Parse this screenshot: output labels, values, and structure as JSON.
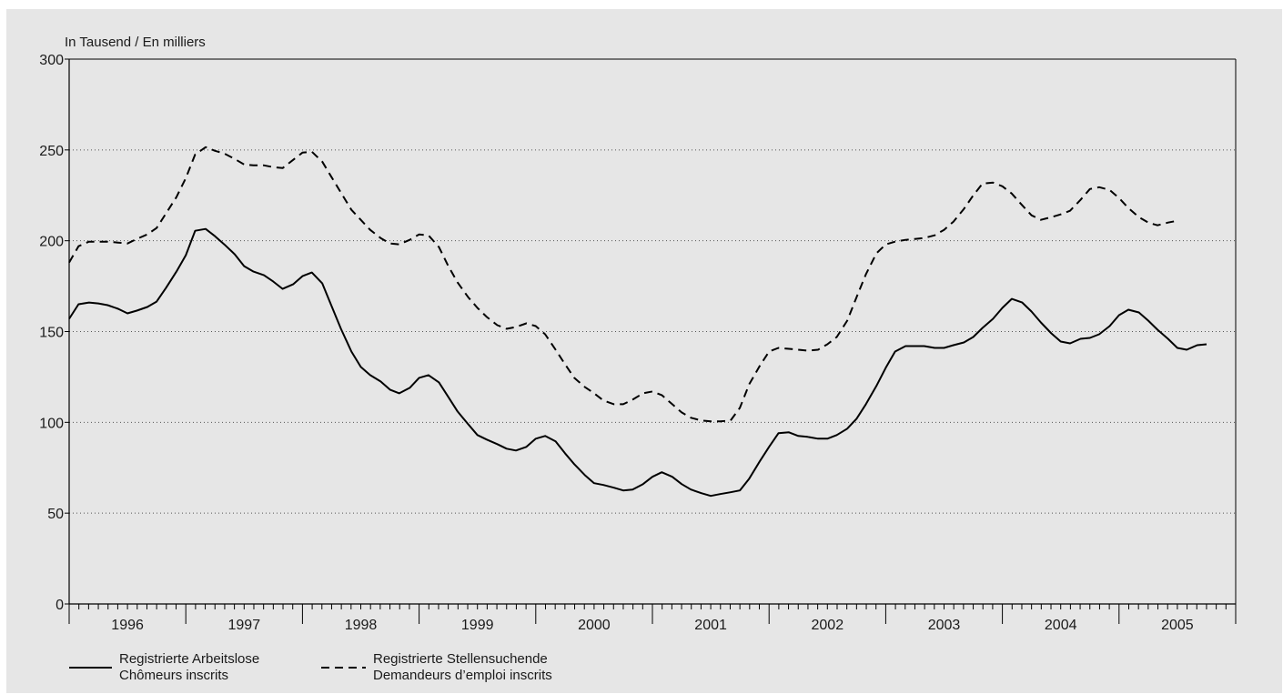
{
  "chart_data": {
    "type": "line",
    "unit_label": "In Tausend / En milliers",
    "ylim": [
      0,
      300
    ],
    "yticks": [
      0,
      50,
      100,
      150,
      200,
      250,
      300
    ],
    "xlim": [
      1996,
      2006
    ],
    "year_labels": [
      "1996",
      "1997",
      "1998",
      "1999",
      "2000",
      "2001",
      "2002",
      "2003",
      "2004",
      "2005"
    ],
    "grid": "horizontal dotted",
    "legend_position": "bottom-left",
    "colors": {
      "line": "#000000",
      "background": "#e6e6e6",
      "grid": "#555555"
    },
    "series": [
      {
        "name": "Registrierte Arbeitslose",
        "name_fr": "Chômeurs inscrits",
        "style": "solid",
        "points": [
          [
            1996.0,
            157
          ],
          [
            1996.08,
            165
          ],
          [
            1996.17,
            166
          ],
          [
            1996.25,
            165.5
          ],
          [
            1996.33,
            164.5
          ],
          [
            1996.42,
            162.5
          ],
          [
            1996.5,
            160
          ],
          [
            1996.58,
            161.5
          ],
          [
            1996.67,
            163.5
          ],
          [
            1996.75,
            166.5
          ],
          [
            1996.83,
            174
          ],
          [
            1996.92,
            183
          ],
          [
            1997.0,
            192
          ],
          [
            1997.08,
            205.5
          ],
          [
            1997.17,
            206.5
          ],
          [
            1997.25,
            202.5
          ],
          [
            1997.33,
            198
          ],
          [
            1997.42,
            192.5
          ],
          [
            1997.5,
            186
          ],
          [
            1997.58,
            183
          ],
          [
            1997.67,
            181
          ],
          [
            1997.75,
            177.5
          ],
          [
            1997.83,
            173.5
          ],
          [
            1997.92,
            176
          ],
          [
            1998.0,
            180.5
          ],
          [
            1998.08,
            182.5
          ],
          [
            1998.17,
            176.5
          ],
          [
            1998.25,
            164
          ],
          [
            1998.33,
            151.5
          ],
          [
            1998.42,
            139
          ],
          [
            1998.5,
            130.5
          ],
          [
            1998.58,
            126
          ],
          [
            1998.67,
            122.5
          ],
          [
            1998.75,
            118
          ],
          [
            1998.83,
            116
          ],
          [
            1998.92,
            119
          ],
          [
            1999.0,
            124.5
          ],
          [
            1999.08,
            126
          ],
          [
            1999.17,
            122
          ],
          [
            1999.25,
            114
          ],
          [
            1999.33,
            106
          ],
          [
            1999.42,
            99
          ],
          [
            1999.5,
            93
          ],
          [
            1999.58,
            90.5
          ],
          [
            1999.67,
            88
          ],
          [
            1999.75,
            85.5
          ],
          [
            1999.83,
            84.5
          ],
          [
            1999.92,
            86.5
          ],
          [
            2000.0,
            91
          ],
          [
            2000.08,
            92.5
          ],
          [
            2000.17,
            89.5
          ],
          [
            2000.25,
            83
          ],
          [
            2000.33,
            77
          ],
          [
            2000.42,
            71
          ],
          [
            2000.5,
            66.5
          ],
          [
            2000.58,
            65.5
          ],
          [
            2000.67,
            64
          ],
          [
            2000.75,
            62.5
          ],
          [
            2000.83,
            63
          ],
          [
            2000.92,
            66
          ],
          [
            2001.0,
            70
          ],
          [
            2001.08,
            72.5
          ],
          [
            2001.17,
            70
          ],
          [
            2001.25,
            66
          ],
          [
            2001.33,
            63
          ],
          [
            2001.42,
            61
          ],
          [
            2001.5,
            59.5
          ],
          [
            2001.58,
            60.5
          ],
          [
            2001.67,
            61.5
          ],
          [
            2001.75,
            62.5
          ],
          [
            2001.83,
            69
          ],
          [
            2001.92,
            78.5
          ],
          [
            2002.0,
            86.5
          ],
          [
            2002.08,
            94
          ],
          [
            2002.17,
            94.5
          ],
          [
            2002.25,
            92.5
          ],
          [
            2002.33,
            92
          ],
          [
            2002.42,
            91
          ],
          [
            2002.5,
            91
          ],
          [
            2002.58,
            93
          ],
          [
            2002.67,
            96.5
          ],
          [
            2002.75,
            102
          ],
          [
            2002.83,
            110
          ],
          [
            2002.92,
            120
          ],
          [
            2003.0,
            130
          ],
          [
            2003.08,
            139
          ],
          [
            2003.17,
            142
          ],
          [
            2003.25,
            142
          ],
          [
            2003.33,
            142
          ],
          [
            2003.42,
            141
          ],
          [
            2003.5,
            141
          ],
          [
            2003.58,
            142.5
          ],
          [
            2003.67,
            144
          ],
          [
            2003.75,
            147
          ],
          [
            2003.83,
            152
          ],
          [
            2003.92,
            157
          ],
          [
            2004.0,
            163
          ],
          [
            2004.08,
            168
          ],
          [
            2004.17,
            166
          ],
          [
            2004.25,
            161
          ],
          [
            2004.33,
            155
          ],
          [
            2004.42,
            149
          ],
          [
            2004.5,
            144.5
          ],
          [
            2004.58,
            143.5
          ],
          [
            2004.67,
            146
          ],
          [
            2004.75,
            146.5
          ],
          [
            2004.83,
            148.5
          ],
          [
            2004.92,
            153
          ],
          [
            2005.0,
            159
          ],
          [
            2005.08,
            162
          ],
          [
            2005.17,
            160.5
          ],
          [
            2005.25,
            156
          ],
          [
            2005.33,
            151
          ],
          [
            2005.42,
            146
          ],
          [
            2005.5,
            141
          ],
          [
            2005.58,
            140
          ],
          [
            2005.67,
            142.5
          ],
          [
            2005.75,
            143
          ]
        ]
      },
      {
        "name": "Registrierte Stellensuchende",
        "name_fr": "Demandeurs d’emploi inscrits",
        "style": "dashed",
        "points": [
          [
            1996.0,
            188
          ],
          [
            1996.08,
            197
          ],
          [
            1996.17,
            199.5
          ],
          [
            1996.25,
            199.5
          ],
          [
            1996.33,
            199.5
          ],
          [
            1996.42,
            199
          ],
          [
            1996.5,
            198.5
          ],
          [
            1996.58,
            201
          ],
          [
            1996.67,
            203.5
          ],
          [
            1996.75,
            207
          ],
          [
            1996.83,
            215
          ],
          [
            1996.92,
            224
          ],
          [
            1997.0,
            234.5
          ],
          [
            1997.08,
            247.5
          ],
          [
            1997.17,
            251.5
          ],
          [
            1997.25,
            249.5
          ],
          [
            1997.33,
            248
          ],
          [
            1997.42,
            245
          ],
          [
            1997.5,
            242
          ],
          [
            1997.58,
            241.5
          ],
          [
            1997.67,
            241.5
          ],
          [
            1997.75,
            240.5
          ],
          [
            1997.83,
            240
          ],
          [
            1997.92,
            244.5
          ],
          [
            1998.0,
            248.5
          ],
          [
            1998.08,
            249
          ],
          [
            1998.17,
            243.5
          ],
          [
            1998.25,
            235
          ],
          [
            1998.33,
            226.5
          ],
          [
            1998.42,
            217
          ],
          [
            1998.5,
            211.5
          ],
          [
            1998.58,
            206
          ],
          [
            1998.67,
            201.5
          ],
          [
            1998.75,
            198.5
          ],
          [
            1998.83,
            198
          ],
          [
            1998.92,
            200.5
          ],
          [
            1999.0,
            203.5
          ],
          [
            1999.08,
            203
          ],
          [
            1999.17,
            196.5
          ],
          [
            1999.25,
            186
          ],
          [
            1999.33,
            177
          ],
          [
            1999.42,
            169
          ],
          [
            1999.5,
            163
          ],
          [
            1999.58,
            158
          ],
          [
            1999.67,
            153.5
          ],
          [
            1999.75,
            151.5
          ],
          [
            1999.83,
            152.5
          ],
          [
            1999.92,
            154.5
          ],
          [
            2000.0,
            153
          ],
          [
            2000.08,
            148.5
          ],
          [
            2000.17,
            140
          ],
          [
            2000.25,
            132
          ],
          [
            2000.33,
            124.5
          ],
          [
            2000.42,
            119.5
          ],
          [
            2000.5,
            116
          ],
          [
            2000.58,
            112
          ],
          [
            2000.67,
            110
          ],
          [
            2000.75,
            110
          ],
          [
            2000.83,
            112.5
          ],
          [
            2000.92,
            116
          ],
          [
            2001.0,
            117
          ],
          [
            2001.08,
            115
          ],
          [
            2001.17,
            110
          ],
          [
            2001.25,
            105.5
          ],
          [
            2001.33,
            102.5
          ],
          [
            2001.42,
            101
          ],
          [
            2001.5,
            100.5
          ],
          [
            2001.58,
            100.5
          ],
          [
            2001.67,
            101
          ],
          [
            2001.75,
            108
          ],
          [
            2001.83,
            121
          ],
          [
            2001.92,
            131
          ],
          [
            2002.0,
            139
          ],
          [
            2002.08,
            141
          ],
          [
            2002.17,
            140.5
          ],
          [
            2002.25,
            140
          ],
          [
            2002.33,
            139.5
          ],
          [
            2002.42,
            140
          ],
          [
            2002.5,
            143
          ],
          [
            2002.58,
            147
          ],
          [
            2002.67,
            156
          ],
          [
            2002.75,
            169
          ],
          [
            2002.83,
            181.5
          ],
          [
            2002.92,
            193
          ],
          [
            2003.0,
            198
          ],
          [
            2003.08,
            199.5
          ],
          [
            2003.17,
            200.5
          ],
          [
            2003.25,
            201
          ],
          [
            2003.33,
            201.5
          ],
          [
            2003.42,
            203
          ],
          [
            2003.5,
            206
          ],
          [
            2003.58,
            210.5
          ],
          [
            2003.67,
            217.5
          ],
          [
            2003.75,
            225
          ],
          [
            2003.83,
            231.5
          ],
          [
            2003.92,
            232
          ],
          [
            2004.0,
            230
          ],
          [
            2004.08,
            226
          ],
          [
            2004.17,
            219.5
          ],
          [
            2004.25,
            214
          ],
          [
            2004.33,
            211.5
          ],
          [
            2004.42,
            213
          ],
          [
            2004.5,
            214.5
          ],
          [
            2004.58,
            216.5
          ],
          [
            2004.67,
            222.5
          ],
          [
            2004.75,
            228.5
          ],
          [
            2004.83,
            229.5
          ],
          [
            2004.92,
            228
          ],
          [
            2005.0,
            223.5
          ],
          [
            2005.08,
            218
          ],
          [
            2005.17,
            213
          ],
          [
            2005.25,
            210
          ],
          [
            2005.33,
            208.5
          ],
          [
            2005.42,
            210
          ],
          [
            2005.5,
            211
          ]
        ]
      }
    ]
  }
}
